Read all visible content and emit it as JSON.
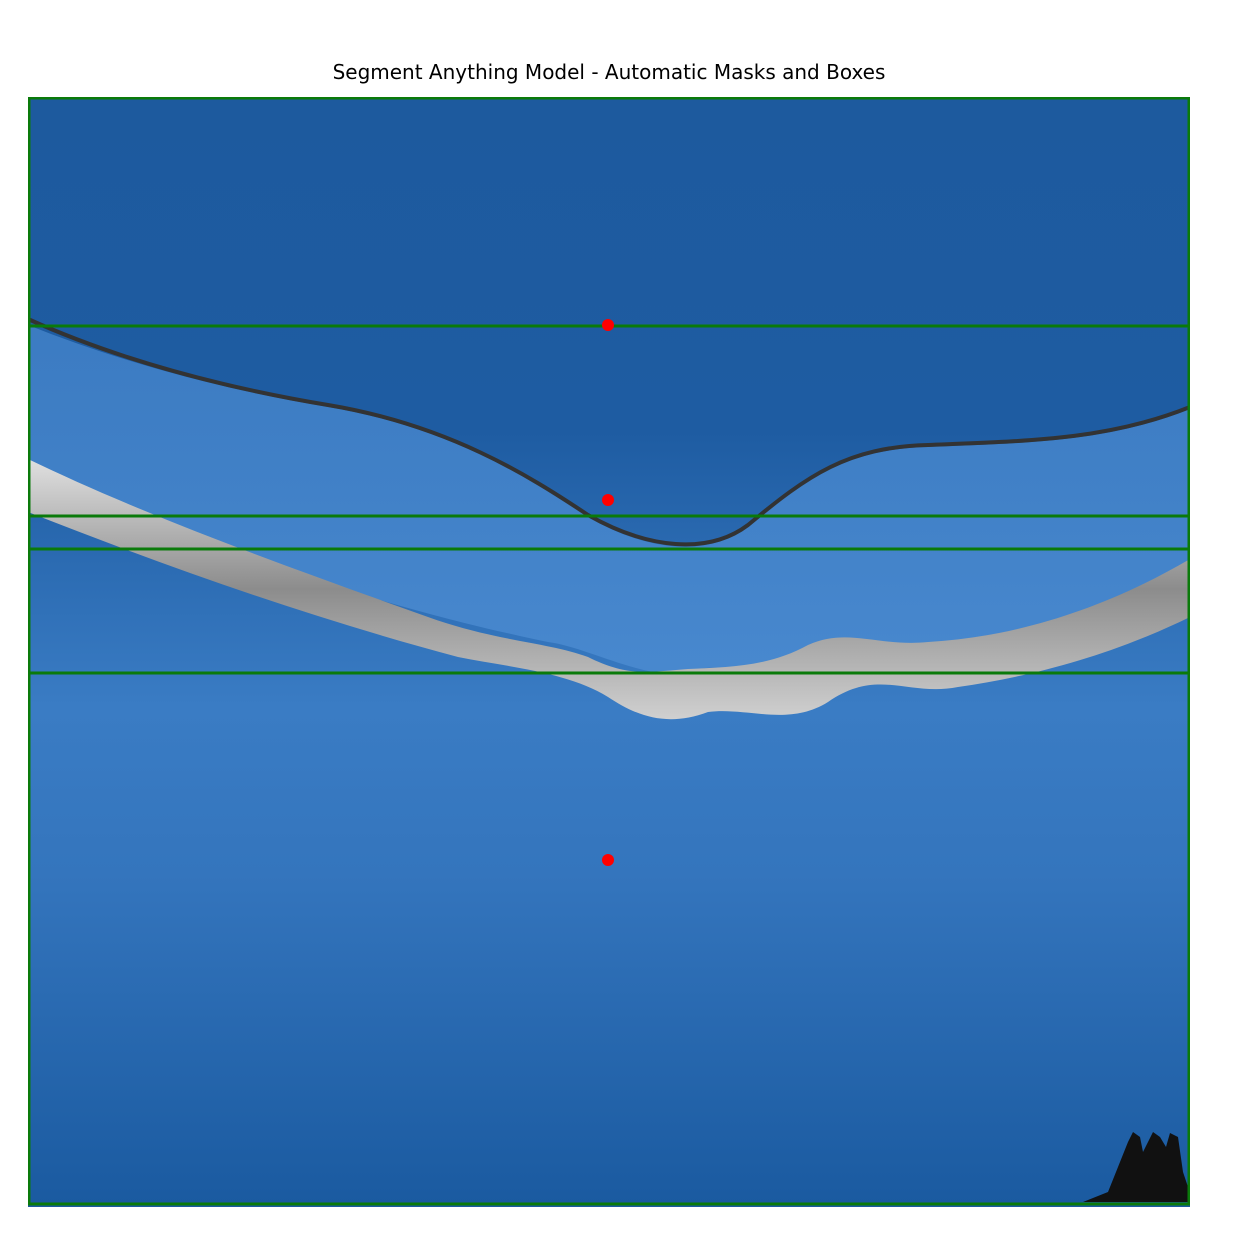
{
  "title": "Segment Anything Model - Automatic Masks and Boxes",
  "colors": {
    "mask_blue": "#1f5fa8",
    "box_green": "#0a7a0a",
    "point_red": "#ff0000",
    "retina_gray": "#b8b8b8"
  },
  "annotations": {
    "boxes": 5,
    "points": 3
  }
}
